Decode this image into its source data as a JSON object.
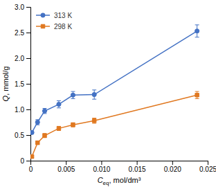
{
  "chart_data": {
    "type": "line",
    "xlabel": "Ceq, mol/dm³",
    "ylabel": "Q, mmol/g",
    "x": [
      0.0002,
      0.001,
      0.002,
      0.004,
      0.006,
      0.009,
      0.0235
    ],
    "series": [
      {
        "name": "313 K",
        "color": "#4472C4",
        "marker": "circle",
        "line_style": "solid",
        "values": [
          0.55,
          0.75,
          0.97,
          1.1,
          1.28,
          1.29,
          2.53
        ],
        "errors": [
          0.03,
          0.05,
          0.05,
          0.07,
          0.07,
          0.09,
          0.12
        ]
      },
      {
        "name": "298 K",
        "color": "#E07820",
        "marker": "square",
        "line_style": "solid",
        "values": [
          0.08,
          0.35,
          0.49,
          0.63,
          0.7,
          0.78,
          1.28
        ],
        "errors": [
          0.02,
          0.03,
          0.04,
          0.04,
          0.04,
          0.05,
          0.07
        ]
      }
    ],
    "xlim": [
      0,
      0.025
    ],
    "ylim": [
      0,
      3.0
    ],
    "xticks": [
      0,
      0.005,
      {
        "value": 0.01,
        "label": "0.010"
      },
      0.015,
      {
        "value": 0.02,
        "label": "0.020"
      },
      0.025
    ],
    "yticks": [
      0,
      0.5,
      {
        "value": 1.0,
        "label": "1.0"
      },
      1.5,
      {
        "value": 2.0,
        "label": "2.0"
      },
      2.5,
      {
        "value": 3.0,
        "label": "3.0"
      }
    ],
    "legend": "upper left",
    "grid": false
  }
}
